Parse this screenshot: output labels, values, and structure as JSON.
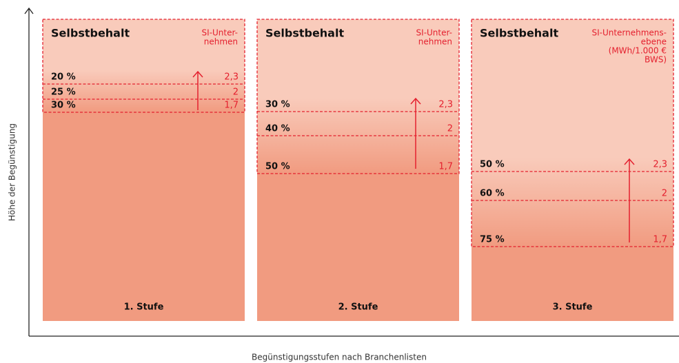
{
  "y_axis_label": "Höhe der Begünstigung",
  "x_axis_label": "Begünstigungsstufen nach Branchenlisten",
  "panels": [
    {
      "title": "Selbstbehalt",
      "unit": [
        "SI-Unter-",
        "nehmen"
      ],
      "rows": [
        {
          "percent": "20 %",
          "value": "2,3"
        },
        {
          "percent": "25 %",
          "value": "2"
        },
        {
          "percent": "30 %",
          "value": "1,7"
        }
      ],
      "stage": "1. Stufe"
    },
    {
      "title": "Selbstbehalt",
      "unit": [
        "SI-Unter-",
        "nehmen"
      ],
      "rows": [
        {
          "percent": "30 %",
          "value": "2,3"
        },
        {
          "percent": "40 %",
          "value": "2"
        },
        {
          "percent": "50 %",
          "value": "1,7"
        }
      ],
      "stage": "2. Stufe"
    },
    {
      "title": "Selbstbehalt",
      "unit": [
        "SI-Unternehmens-",
        "ebene",
        "(MWh/1.000 €",
        "BWS)"
      ],
      "rows": [
        {
          "percent": "50 %",
          "value": "2,3"
        },
        {
          "percent": "60 %",
          "value": "2"
        },
        {
          "percent": "75 %",
          "value": "1,7"
        }
      ],
      "stage": "3. Stufe"
    }
  ]
}
